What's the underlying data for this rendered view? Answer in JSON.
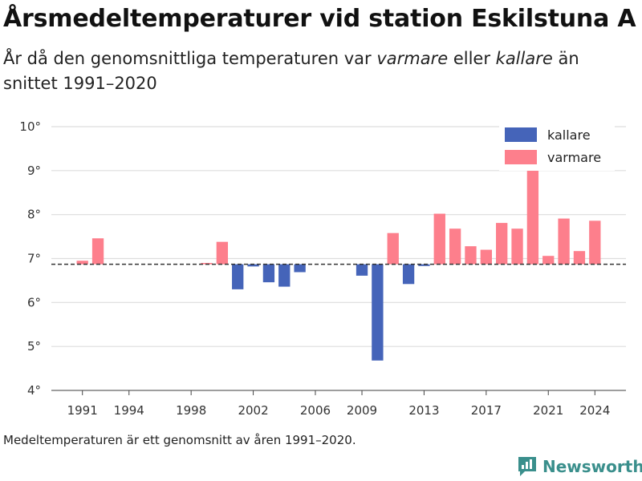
{
  "header": {
    "title": "Årsmedeltemperaturer vid station Eskilstuna A",
    "subtitle_before": "År då den genomsnittliga temperaturen var ",
    "subtitle_warm": "varmare",
    "subtitle_middle": " eller ",
    "subtitle_cold": "kallare",
    "subtitle_after": " än snittet 1991–2020"
  },
  "footnote": "Medeltemperaturen är ett genomsnitt av åren 1991–2020.",
  "brand": {
    "name": "Newsworthy",
    "icon": "newsworthy-logo-icon"
  },
  "colors": {
    "kallare": "#4564b9",
    "varmare": "#fd7f8c",
    "grid": "#dddddd",
    "baseline": "#333333"
  },
  "chart_data": {
    "type": "bar",
    "baseline": 6.87,
    "baseline_style": "dashed",
    "ylim": [
      4,
      10
    ],
    "yticks": [
      4,
      5,
      6,
      7,
      8,
      9,
      10
    ],
    "ytick_labels": [
      "4°",
      "5°",
      "6°",
      "7°",
      "8°",
      "9°",
      "10°"
    ],
    "xlim": [
      1989,
      2026
    ],
    "xticks": [
      1991,
      1994,
      1998,
      2002,
      2006,
      2009,
      2013,
      2017,
      2021,
      2024
    ],
    "xtick_labels": [
      "1991",
      "1994",
      "1998",
      "2002",
      "2006",
      "2009",
      "2013",
      "2017",
      "2021",
      "2024"
    ],
    "grid": true,
    "legend": {
      "placement": "top-right",
      "entries": [
        {
          "key": "kallare",
          "label": "kallare"
        },
        {
          "key": "varmare",
          "label": "varmare"
        }
      ]
    },
    "series": [
      {
        "name": "kallare",
        "points": [
          {
            "x": 2001,
            "y": 6.3
          },
          {
            "x": 2002,
            "y": 6.82
          },
          {
            "x": 2003,
            "y": 6.46
          },
          {
            "x": 2004,
            "y": 6.36
          },
          {
            "x": 2005,
            "y": 6.69
          },
          {
            "x": 2009,
            "y": 6.61
          },
          {
            "x": 2010,
            "y": 4.68
          },
          {
            "x": 2012,
            "y": 6.42
          },
          {
            "x": 2013,
            "y": 6.83
          }
        ]
      },
      {
        "name": "varmare",
        "points": [
          {
            "x": 1991,
            "y": 6.95
          },
          {
            "x": 1992,
            "y": 7.46
          },
          {
            "x": 1999,
            "y": 6.9
          },
          {
            "x": 2000,
            "y": 7.38
          },
          {
            "x": 2011,
            "y": 7.58
          },
          {
            "x": 2014,
            "y": 8.02
          },
          {
            "x": 2015,
            "y": 7.68
          },
          {
            "x": 2016,
            "y": 7.28
          },
          {
            "x": 2017,
            "y": 7.2
          },
          {
            "x": 2018,
            "y": 7.81
          },
          {
            "x": 2019,
            "y": 7.68
          },
          {
            "x": 2020,
            "y": 9.02
          },
          {
            "x": 2021,
            "y": 7.06
          },
          {
            "x": 2022,
            "y": 7.91
          },
          {
            "x": 2023,
            "y": 7.17
          },
          {
            "x": 2024,
            "y": 7.86
          }
        ]
      }
    ]
  }
}
